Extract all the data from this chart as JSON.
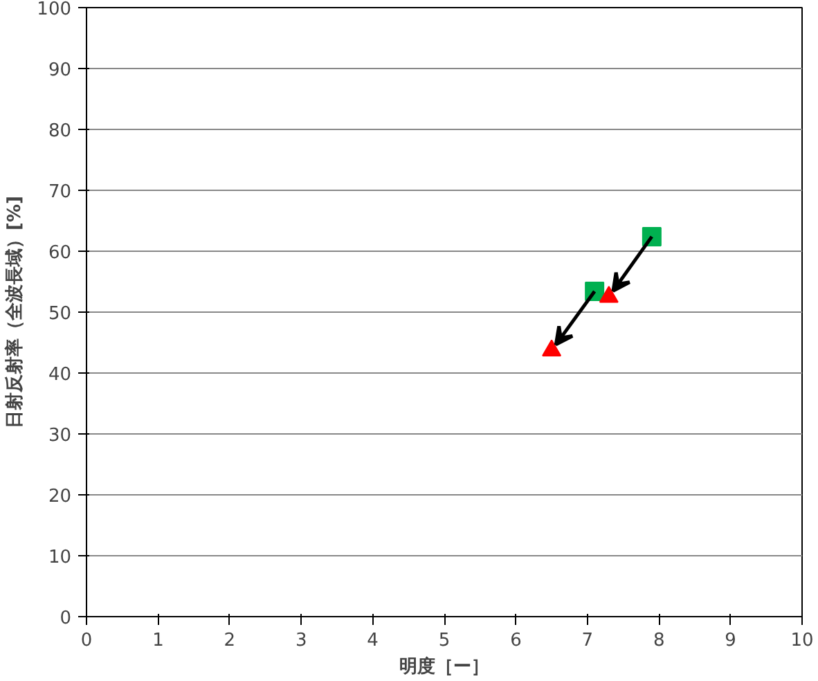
{
  "chart_data": {
    "type": "scatter",
    "xlabel": "明度［ー］",
    "ylabel": "日射反射率（全波長域）[%]",
    "xlim": [
      0,
      10
    ],
    "ylim": [
      0,
      100
    ],
    "xticks": [
      0,
      1,
      2,
      3,
      4,
      5,
      6,
      7,
      8,
      9,
      10
    ],
    "yticks": [
      0,
      10,
      20,
      30,
      40,
      50,
      60,
      70,
      80,
      90,
      100
    ],
    "grid": "y",
    "series": [
      {
        "color": "#00b050",
        "marker": "square",
        "x": [
          7.9,
          7.1
        ],
        "values": [
          62.4,
          53.4
        ]
      },
      {
        "color": "#ff0000",
        "marker": "triangle",
        "x": [
          7.3,
          6.5
        ],
        "values": [
          52.5,
          43.7
        ]
      }
    ]
  }
}
